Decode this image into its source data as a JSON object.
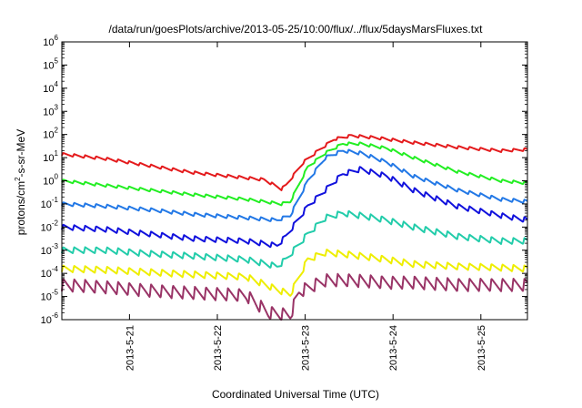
{
  "chart_data": {
    "type": "line",
    "title": "/data/run/goesPlots/archive/2013-05-25/10:00/flux/../flux/5daysMarsFluxes.txt",
    "xlabel": "Coordinated Universal Time (UTC)",
    "ylabel": {
      "prefix": "protons/cm",
      "sup": "2",
      "suffix": "-s-sr-MeV"
    },
    "yscale": "log",
    "ylim_exp": [
      -6,
      6
    ],
    "ytick_labels": [
      {
        "base": "10",
        "exp": "6"
      },
      {
        "base": "10",
        "exp": "5"
      },
      {
        "base": "10",
        "exp": "4"
      },
      {
        "base": "10",
        "exp": "3"
      },
      {
        "base": "10",
        "exp": "2"
      },
      {
        "base": "10",
        "exp": "1"
      },
      {
        "base": "10",
        "exp": "0"
      },
      {
        "base": "10",
        "exp": "-1"
      },
      {
        "base": "10",
        "exp": "-2"
      },
      {
        "base": "10",
        "exp": "-3"
      },
      {
        "base": "10",
        "exp": "-4"
      },
      {
        "base": "10",
        "exp": "-5"
      },
      {
        "base": "10",
        "exp": "-6"
      }
    ],
    "x_unit": "days",
    "xlim": [
      0,
      5.3
    ],
    "x_ticks": [
      {
        "x": 0.77,
        "label": "2013-5-21"
      },
      {
        "x": 1.77,
        "label": "2013-5-22"
      },
      {
        "x": 2.77,
        "label": "2013-5-23"
      },
      {
        "x": 3.77,
        "label": "2013-5-24"
      },
      {
        "x": 4.77,
        "label": "2013-5-25"
      }
    ],
    "grid": false,
    "series": [
      {
        "color": "#e41a1c",
        "sawtooth_amp_dex": 0.12,
        "points": [
          [
            0,
            1.15
          ],
          [
            0.5,
            0.95
          ],
          [
            1.0,
            0.65
          ],
          [
            1.5,
            0.35
          ],
          [
            2.3,
            0.05
          ],
          [
            2.5,
            -0.35
          ],
          [
            2.55,
            -0.2
          ],
          [
            2.75,
            0.8
          ],
          [
            2.9,
            1.25
          ],
          [
            3.1,
            1.8
          ],
          [
            3.3,
            1.95
          ],
          [
            3.6,
            1.85
          ],
          [
            4.0,
            1.65
          ],
          [
            4.5,
            1.45
          ],
          [
            5.0,
            1.3
          ],
          [
            5.3,
            1.35
          ]
        ]
      },
      {
        "color": "#22ee22",
        "sawtooth_amp_dex": 0.12,
        "points": [
          [
            0,
            0.0
          ],
          [
            0.5,
            -0.2
          ],
          [
            1.0,
            -0.4
          ],
          [
            1.5,
            -0.6
          ],
          [
            2.1,
            -0.8
          ],
          [
            2.5,
            -1.0
          ],
          [
            2.6,
            -0.9
          ],
          [
            2.8,
            0.6
          ],
          [
            3.0,
            1.2
          ],
          [
            3.2,
            1.6
          ],
          [
            3.4,
            1.6
          ],
          [
            3.7,
            1.4
          ],
          [
            4.0,
            1.0
          ],
          [
            4.5,
            0.4
          ],
          [
            5.0,
            0.0
          ],
          [
            5.3,
            -0.1
          ]
        ]
      },
      {
        "color": "#2278e6",
        "sawtooth_amp_dex": 0.15,
        "points": [
          [
            0,
            -1.0
          ],
          [
            0.5,
            -1.1
          ],
          [
            1.0,
            -1.25
          ],
          [
            1.5,
            -1.45
          ],
          [
            2.1,
            -1.6
          ],
          [
            2.45,
            -1.7
          ],
          [
            2.6,
            -1.5
          ],
          [
            2.8,
            0.0
          ],
          [
            3.0,
            1.0
          ],
          [
            3.2,
            1.3
          ],
          [
            3.4,
            1.2
          ],
          [
            3.7,
            0.8
          ],
          [
            4.0,
            0.2
          ],
          [
            4.5,
            -0.4
          ],
          [
            5.0,
            -0.8
          ],
          [
            5.3,
            -0.9
          ]
        ]
      },
      {
        "color": "#1111dd",
        "sawtooth_amp_dex": 0.22,
        "points": [
          [
            0,
            -2.0
          ],
          [
            0.5,
            -2.1
          ],
          [
            1.0,
            -2.3
          ],
          [
            1.5,
            -2.5
          ],
          [
            2.1,
            -2.6
          ],
          [
            2.45,
            -2.8
          ],
          [
            2.55,
            -2.4
          ],
          [
            2.8,
            -1.1
          ],
          [
            3.0,
            -0.4
          ],
          [
            3.2,
            0.3
          ],
          [
            3.4,
            0.5
          ],
          [
            3.7,
            0.2
          ],
          [
            4.0,
            -0.4
          ],
          [
            4.5,
            -1.1
          ],
          [
            5.0,
            -1.5
          ],
          [
            5.3,
            -1.7
          ]
        ]
      },
      {
        "color": "#22ccaa",
        "sawtooth_amp_dex": 0.26,
        "points": [
          [
            0,
            -3.0
          ],
          [
            0.5,
            -3.0
          ],
          [
            1.0,
            -3.15
          ],
          [
            1.5,
            -3.25
          ],
          [
            2.1,
            -3.4
          ],
          [
            2.45,
            -3.7
          ],
          [
            2.55,
            -3.4
          ],
          [
            2.8,
            -2.3
          ],
          [
            3.0,
            -1.6
          ],
          [
            3.2,
            -1.4
          ],
          [
            3.4,
            -1.5
          ],
          [
            3.7,
            -1.7
          ],
          [
            4.0,
            -2.0
          ],
          [
            4.5,
            -2.4
          ],
          [
            5.0,
            -2.6
          ],
          [
            5.3,
            -2.6
          ]
        ]
      },
      {
        "color": "#eeee00",
        "sawtooth_amp_dex": 0.28,
        "points": [
          [
            0,
            -3.8
          ],
          [
            0.5,
            -3.85
          ],
          [
            1.0,
            -3.95
          ],
          [
            1.5,
            -4.05
          ],
          [
            2.1,
            -4.15
          ],
          [
            2.45,
            -4.7
          ],
          [
            2.6,
            -4.9
          ],
          [
            2.8,
            -3.4
          ],
          [
            3.0,
            -3.1
          ],
          [
            3.3,
            -3.2
          ],
          [
            3.7,
            -3.4
          ],
          [
            4.0,
            -3.6
          ],
          [
            4.5,
            -3.7
          ],
          [
            5.0,
            -3.75
          ],
          [
            5.3,
            -3.8
          ]
        ]
      },
      {
        "color": "#993366",
        "sawtooth_amp_dex": 0.55,
        "points": [
          [
            0,
            -4.5
          ],
          [
            0.5,
            -4.6
          ],
          [
            1.0,
            -4.75
          ],
          [
            1.5,
            -4.85
          ],
          [
            2.1,
            -4.95
          ],
          [
            2.35,
            -5.7
          ],
          [
            2.6,
            -5.8
          ],
          [
            2.7,
            -4.8
          ],
          [
            3.0,
            -4.3
          ],
          [
            3.3,
            -4.3
          ],
          [
            3.7,
            -4.4
          ],
          [
            4.0,
            -4.4
          ],
          [
            4.5,
            -4.5
          ],
          [
            5.0,
            -4.5
          ],
          [
            5.3,
            -4.5
          ]
        ]
      }
    ]
  }
}
